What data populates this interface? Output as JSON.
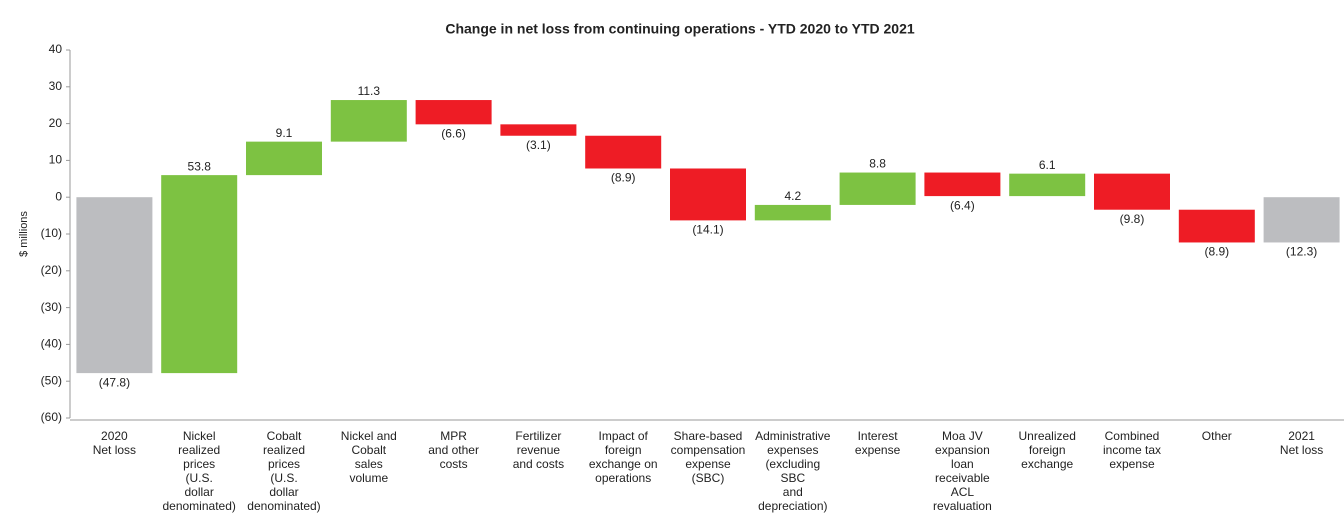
{
  "chart_data": {
    "type": "waterfall",
    "title": "Change in net loss from continuing operations - YTD 2020 to YTD 2021",
    "y_label": "$ millions",
    "categories": [
      "2020\nNet loss",
      "Nickel\nrealized\nprices\n(U.S.\ndollar\ndenominated)",
      "Cobalt\nrealized\nprices\n(U.S.\ndollar\ndenominated)",
      "Nickel and\nCobalt\nsales\nvolume",
      "MPR\nand other\ncosts",
      "Fertilizer\nrevenue\nand costs",
      "Impact of\nforeign\nexchange on\noperations",
      "Share-based\ncompensation\nexpense\n(SBC)",
      "Administrative\nexpenses\n(excluding\nSBC\nand\ndepreciation)",
      "Interest\nexpense",
      "Moa JV\nexpansion\nloan\nreceivable\nACL\nrevaluation",
      "Unrealized\nforeign\nexchange",
      "Combined\nincome tax\nexpense",
      "Other",
      "2021\nNet loss"
    ],
    "values": [
      -47.8,
      53.8,
      9.1,
      11.3,
      -6.6,
      -3.1,
      -8.9,
      -14.1,
      4.2,
      8.8,
      -6.4,
      6.1,
      -9.8,
      -8.9,
      -12.3
    ],
    "value_labels": [
      "(47.8)",
      "53.8",
      "9.1",
      "11.3",
      "(6.6)",
      "(3.1)",
      "(8.9)",
      "(14.1)",
      "4.2",
      "8.8",
      "(6.4)",
      "6.1",
      "(9.8)",
      "(8.9)",
      "(12.3)"
    ],
    "measure": [
      "total",
      "relative",
      "relative",
      "relative",
      "relative",
      "relative",
      "relative",
      "relative",
      "relative",
      "relative",
      "relative",
      "relative",
      "relative",
      "relative",
      "total"
    ],
    "colors": {
      "increase": "#7dc242",
      "decrease": "#ee1c25",
      "total": "#bcbdc0"
    },
    "ylim": [
      -60,
      40
    ],
    "yticks": [
      {
        "value": -60,
        "label": "(60)"
      },
      {
        "value": -50,
        "label": "(50)"
      },
      {
        "value": -40,
        "label": "(40)"
      },
      {
        "value": -30,
        "label": "(30)"
      },
      {
        "value": -20,
        "label": "(20)"
      },
      {
        "value": -10,
        "label": "(10)"
      },
      0,
      10,
      20,
      30,
      40
    ]
  }
}
